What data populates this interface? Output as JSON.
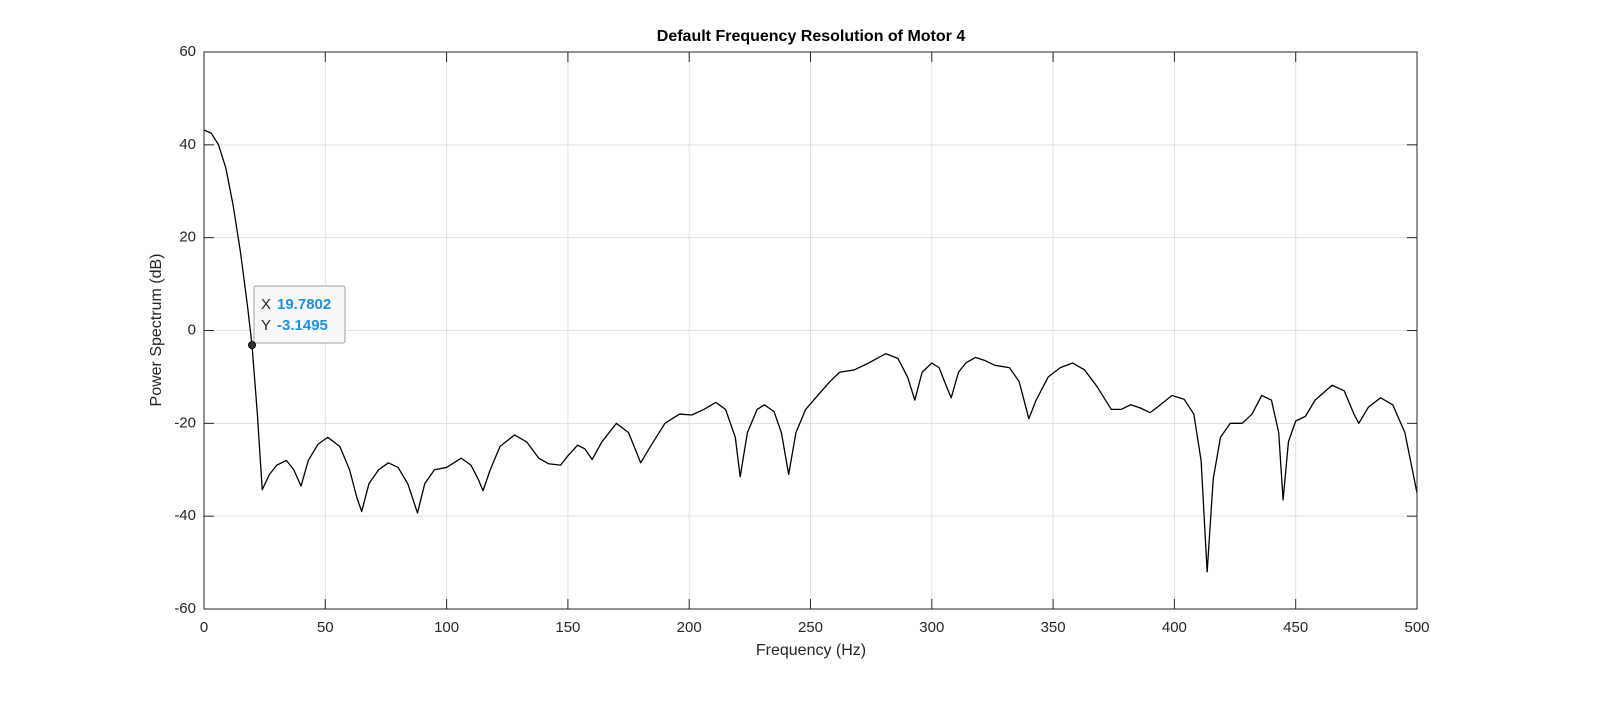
{
  "chart_data": {
    "type": "line",
    "title": "Default Frequency Resolution of Motor 4",
    "xlabel": "Frequency (Hz)",
    "ylabel": "Power Spectrum (dB)",
    "x": [
      0,
      3,
      6,
      9,
      12,
      15,
      18,
      19.78,
      22,
      24,
      27,
      30,
      34,
      37,
      40,
      43,
      47,
      51,
      56,
      60,
      63,
      65,
      68,
      72,
      76,
      80,
      84,
      88,
      91,
      95,
      100,
      106,
      110,
      113,
      115,
      118,
      122,
      128,
      133,
      138,
      142,
      147,
      150,
      154,
      157,
      160,
      164,
      170,
      175,
      180,
      184,
      190,
      196,
      201,
      206,
      211,
      215,
      219,
      221,
      224,
      228,
      231,
      235,
      238,
      241,
      244,
      248,
      253,
      258,
      262,
      268,
      274,
      281,
      286,
      290,
      293,
      296,
      300,
      303,
      306,
      308,
      311,
      314,
      318,
      322,
      326,
      332,
      336,
      340,
      343,
      348,
      353,
      358,
      363,
      368,
      374,
      378,
      382,
      386,
      390,
      393,
      399,
      404,
      408,
      411,
      413.5,
      416,
      419,
      423,
      428,
      432,
      436,
      440,
      443,
      444.8,
      447,
      450,
      454,
      458,
      465,
      470,
      474,
      476,
      480,
      485,
      490,
      495,
      500
    ],
    "values": [
      43.2,
      42.5,
      40,
      35,
      27,
      17,
      5,
      -3.1,
      -18,
      -34.3,
      -31,
      -29,
      -28,
      -30,
      -33.5,
      -28,
      -24.5,
      -23,
      -25,
      -30,
      -36,
      -39,
      -33,
      -30,
      -28.5,
      -29.5,
      -33,
      -39.3,
      -33,
      -30,
      -29.5,
      -27.5,
      -29,
      -32,
      -34.5,
      -30,
      -25,
      -22.5,
      -24,
      -27.5,
      -28.7,
      -29,
      -27,
      -24.7,
      -25.5,
      -27.8,
      -24,
      -20,
      -22,
      -28.5,
      -25,
      -20,
      -18,
      -18.2,
      -17,
      -15.5,
      -17,
      -23,
      -31.5,
      -22,
      -17,
      -16,
      -17.5,
      -22,
      -31,
      -22,
      -17,
      -14,
      -11,
      -9,
      -8.5,
      -7,
      -5,
      -6,
      -10,
      -15,
      -9,
      -7,
      -8,
      -12,
      -14.5,
      -9,
      -7,
      -5.8,
      -6.5,
      -7.5,
      -8,
      -11,
      -19,
      -15,
      -10,
      -8,
      -7,
      -8.5,
      -12,
      -17,
      -17,
      -16,
      -16.7,
      -17.7,
      -16.5,
      -14,
      -14.8,
      -18,
      -28,
      -52,
      -32,
      -23,
      -20,
      -20,
      -18,
      -14,
      -15,
      -22,
      -36.5,
      -24,
      -19.5,
      -18.5,
      -15,
      -11.8,
      -13,
      -18,
      -20,
      -16.5,
      -14.5,
      -16,
      -22,
      -35
    ],
    "color": "#000000",
    "xlim": [
      0,
      500
    ],
    "xticks": [
      0,
      50,
      100,
      150,
      200,
      250,
      300,
      350,
      400,
      450,
      500
    ],
    "ylim": [
      -60,
      60
    ],
    "yticks": [
      -60,
      -40,
      -20,
      0,
      20,
      40,
      60
    ],
    "grid": true,
    "datatip": {
      "x_label": "X",
      "x": 19.7802,
      "y_label": "Y",
      "y": -3.1495
    }
  }
}
